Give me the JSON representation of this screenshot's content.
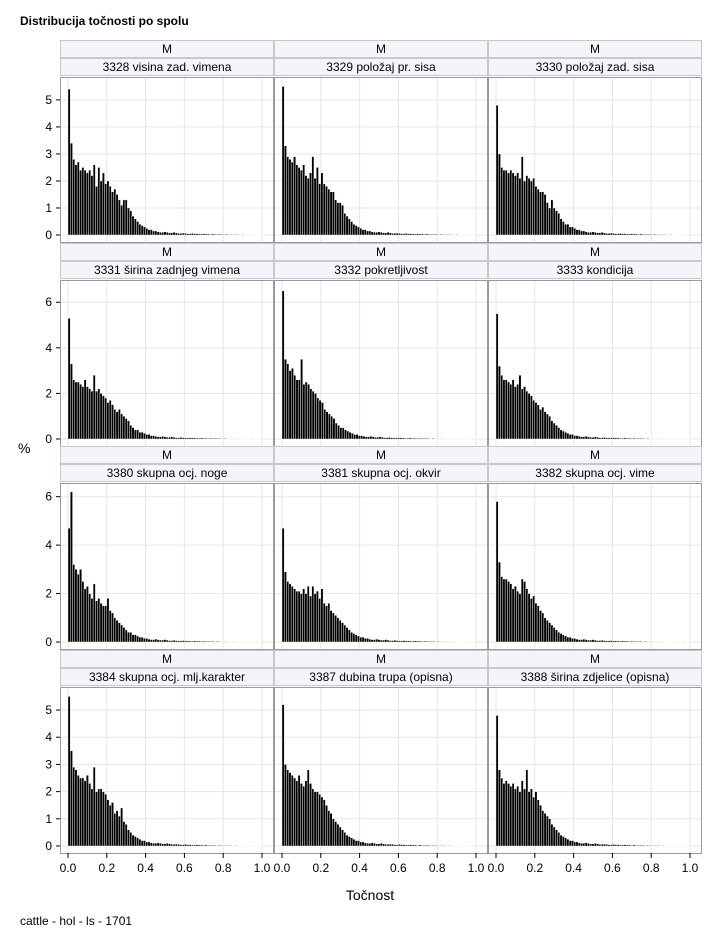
{
  "title": "Distribucija točnosti po spolu",
  "footer": "cattle - hol - ls - 1701",
  "chart_data": {
    "type": "bar",
    "title": "Distribucija točnosti po spolu",
    "xlabel": "Točnost",
    "ylabel": "%",
    "xlim": [
      0,
      1
    ],
    "x_ticks": [
      "0.0",
      "0.2",
      "0.4",
      "0.6",
      "0.8",
      "1.0"
    ],
    "grid": true,
    "panels": [
      {
        "sex": "M",
        "trait": "3328 visina zad. vimena",
        "ylim": [
          0,
          5.7
        ],
        "y_ticks": [
          0,
          1,
          2,
          3,
          4,
          5
        ],
        "values": [
          5.4,
          3.4,
          2.8,
          2.6,
          2.7,
          2.4,
          2.5,
          2.4,
          2.3,
          2.4,
          2.2,
          2.6,
          1.8,
          2.5,
          2.0,
          2.3,
          1.9,
          2.0,
          1.8,
          1.6,
          1.7,
          1.5,
          1.3,
          1.1,
          1.3,
          1.3,
          1.0,
          0.9,
          0.7,
          0.6,
          0.5,
          0.4,
          0.35,
          0.3,
          0.25,
          0.2,
          0.2,
          0.15,
          0.15,
          0.12,
          0.1,
          0.1,
          0.12,
          0.1,
          0.08,
          0.08,
          0.1,
          0.08,
          0.06,
          0.06,
          0.07,
          0.06,
          0.05,
          0.05,
          0.06,
          0.05,
          0.05,
          0.04,
          0.04,
          0.05,
          0.04,
          0.04,
          0.03,
          0.04,
          0.03,
          0.03,
          0.03,
          0.03,
          0.02,
          0.03,
          0.02,
          0.02,
          0.02,
          0.02,
          0.02,
          0.01,
          0.02,
          0.01,
          0.01,
          0.01,
          0.01,
          0,
          0.01,
          0.01,
          0.01
        ]
      },
      {
        "sex": "M",
        "trait": "3329 položaj pr. sisa",
        "ylim": [
          0,
          5.7
        ],
        "y_ticks": [
          0,
          1,
          2,
          3,
          4,
          5
        ],
        "values": [
          5.5,
          3.3,
          2.9,
          2.8,
          2.7,
          2.9,
          2.6,
          2.5,
          2.4,
          2.6,
          2.2,
          2.1,
          2.3,
          2.9,
          2.1,
          2.5,
          1.9,
          2.3,
          1.9,
          1.8,
          1.7,
          1.6,
          1.6,
          1.3,
          1.2,
          1.2,
          1.1,
          0.8,
          0.7,
          0.6,
          0.5,
          0.4,
          0.35,
          0.3,
          0.25,
          0.2,
          0.2,
          0.15,
          0.15,
          0.12,
          0.1,
          0.1,
          0.12,
          0.1,
          0.08,
          0.08,
          0.1,
          0.08,
          0.06,
          0.06,
          0.07,
          0.06,
          0.05,
          0.05,
          0.06,
          0.05,
          0.05,
          0.04,
          0.04,
          0.05,
          0.04,
          0.04,
          0.03,
          0.04,
          0.03,
          0.03,
          0.03,
          0.03,
          0.02,
          0.03,
          0.02,
          0.02,
          0.02,
          0.02,
          0.02,
          0.01,
          0.02,
          0.01,
          0.01,
          0.01,
          0.01,
          0,
          0.01,
          0.01,
          0.01
        ]
      },
      {
        "sex": "M",
        "trait": "3330 položaj zad. sisa",
        "ylim": [
          0,
          5.7
        ],
        "y_ticks": [
          0,
          1,
          2,
          3,
          4,
          5
        ],
        "values": [
          4.8,
          3.0,
          2.5,
          2.4,
          2.4,
          2.3,
          2.4,
          2.3,
          2.2,
          2.3,
          2.1,
          2.9,
          2.0,
          2.2,
          2.1,
          2.0,
          2.1,
          1.8,
          1.7,
          1.6,
          1.6,
          1.5,
          1.2,
          1.0,
          1.3,
          1.0,
          0.9,
          0.8,
          0.6,
          0.5,
          0.4,
          0.4,
          0.3,
          0.3,
          0.25,
          0.2,
          0.2,
          0.15,
          0.15,
          0.12,
          0.1,
          0.1,
          0.12,
          0.1,
          0.08,
          0.08,
          0.1,
          0.08,
          0.06,
          0.06,
          0.07,
          0.06,
          0.05,
          0.05,
          0.06,
          0.05,
          0.05,
          0.04,
          0.04,
          0.05,
          0.04,
          0.04,
          0.03,
          0.04,
          0.03,
          0.03,
          0.03,
          0.03,
          0.02,
          0.03,
          0.02,
          0.02,
          0.02,
          0.02,
          0.02,
          0.01,
          0.02,
          0.01,
          0.01,
          0.01,
          0.01,
          0,
          0.01,
          0.01,
          0.01
        ]
      },
      {
        "sex": "M",
        "trait": "3331 širina zadnjeg vimena",
        "ylim": [
          0,
          6.8
        ],
        "y_ticks": [
          0,
          2,
          4,
          6
        ],
        "values": [
          5.3,
          3.3,
          2.6,
          2.5,
          2.5,
          2.4,
          2.3,
          2.6,
          2.3,
          2.2,
          2.1,
          2.8,
          2.1,
          2.2,
          2.0,
          1.9,
          1.8,
          1.6,
          1.7,
          1.5,
          1.3,
          1.2,
          1.3,
          1.1,
          1.0,
          0.9,
          0.8,
          0.6,
          0.5,
          0.4,
          0.4,
          0.3,
          0.3,
          0.25,
          0.2,
          0.2,
          0.15,
          0.15,
          0.12,
          0.1,
          0.1,
          0.12,
          0.1,
          0.08,
          0.08,
          0.1,
          0.08,
          0.06,
          0.06,
          0.07,
          0.06,
          0.05,
          0.05,
          0.06,
          0.05,
          0.05,
          0.04,
          0.04,
          0.05,
          0.04,
          0.04,
          0.03,
          0.04,
          0.03,
          0.03,
          0.03,
          0.03,
          0.02,
          0.03,
          0.02,
          0.02,
          0.02,
          0.02,
          0.02,
          0.01,
          0.02,
          0.01,
          0.01,
          0.01,
          0.01,
          0,
          0.01,
          0.01,
          0.01,
          0.01
        ]
      },
      {
        "sex": "M",
        "trait": "3332 pokretljivost",
        "ylim": [
          0,
          6.8
        ],
        "y_ticks": [
          0,
          2,
          4,
          6
        ],
        "values": [
          6.5,
          3.5,
          3.3,
          3.0,
          3.1,
          2.8,
          2.6,
          2.6,
          3.5,
          2.4,
          2.5,
          2.4,
          2.2,
          2.1,
          2.0,
          1.8,
          1.7,
          1.6,
          1.3,
          1.2,
          1.1,
          1.0,
          0.9,
          0.7,
          0.6,
          0.5,
          0.5,
          0.4,
          0.35,
          0.3,
          0.25,
          0.2,
          0.2,
          0.15,
          0.15,
          0.12,
          0.1,
          0.1,
          0.12,
          0.1,
          0.08,
          0.08,
          0.1,
          0.08,
          0.06,
          0.06,
          0.07,
          0.06,
          0.05,
          0.05,
          0.06,
          0.05,
          0.05,
          0.04,
          0.04,
          0.05,
          0.04,
          0.04,
          0.03,
          0.04,
          0.03,
          0.03,
          0.03,
          0.03,
          0.02,
          0.03,
          0.02,
          0.02,
          0.02,
          0.02,
          0.02,
          0.01,
          0.02,
          0.01,
          0.01,
          0.01,
          0.01,
          0,
          0.01,
          0.01,
          0.01,
          0.01,
          0,
          0.01
        ]
      },
      {
        "sex": "M",
        "trait": "3333 kondicija",
        "ylim": [
          0,
          6.8
        ],
        "y_ticks": [
          0,
          2,
          4,
          6
        ],
        "values": [
          5.5,
          3.2,
          2.8,
          2.6,
          2.6,
          2.5,
          2.4,
          2.6,
          2.3,
          2.4,
          2.8,
          2.2,
          2.3,
          2.1,
          2.0,
          1.9,
          1.7,
          1.6,
          1.5,
          1.3,
          1.4,
          1.2,
          1.1,
          1.0,
          0.8,
          0.7,
          0.6,
          0.5,
          0.4,
          0.35,
          0.3,
          0.25,
          0.2,
          0.2,
          0.15,
          0.15,
          0.12,
          0.1,
          0.1,
          0.12,
          0.1,
          0.08,
          0.08,
          0.1,
          0.08,
          0.06,
          0.06,
          0.07,
          0.06,
          0.05,
          0.05,
          0.06,
          0.05,
          0.05,
          0.04,
          0.04,
          0.05,
          0.04,
          0.04,
          0.03,
          0.04,
          0.03,
          0.03,
          0.03,
          0.03,
          0.02,
          0.03,
          0.02,
          0.02,
          0.02,
          0.02,
          0.02,
          0.01,
          0.02,
          0.01,
          0.01,
          0.01,
          0.01,
          0,
          0.01,
          0.01,
          0.01,
          0.01,
          0,
          0.01
        ]
      },
      {
        "sex": "M",
        "trait": "3380 skupna ocj. noge",
        "ylim": [
          0,
          6.4
        ],
        "y_ticks": [
          0,
          2,
          4,
          6
        ],
        "values": [
          4.7,
          6.2,
          3.2,
          3.0,
          2.8,
          3.0,
          2.5,
          2.2,
          2.3,
          2.0,
          1.8,
          2.4,
          1.7,
          1.8,
          1.6,
          1.5,
          1.5,
          1.8,
          1.3,
          1.2,
          1.0,
          0.9,
          0.8,
          0.7,
          0.6,
          0.5,
          0.4,
          0.4,
          0.3,
          0.3,
          0.25,
          0.2,
          0.2,
          0.15,
          0.15,
          0.12,
          0.1,
          0.1,
          0.12,
          0.1,
          0.08,
          0.08,
          0.1,
          0.08,
          0.06,
          0.06,
          0.07,
          0.06,
          0.05,
          0.05,
          0.06,
          0.05,
          0.05,
          0.04,
          0.04,
          0.05,
          0.04,
          0.04,
          0.03,
          0.04,
          0.03,
          0.03,
          0.03,
          0.03,
          0.02,
          0.03,
          0.02,
          0.02,
          0.02,
          0.02,
          0.02,
          0.01,
          0.02,
          0.01,
          0.01,
          0.01,
          0.01,
          0,
          0.01,
          0.01,
          0.01,
          0.01,
          0,
          0.01,
          0.01
        ]
      },
      {
        "sex": "M",
        "trait": "3381 skupna ocj. okvir",
        "ylim": [
          0,
          6.4
        ],
        "y_ticks": [
          0,
          2,
          4,
          6
        ],
        "values": [
          4.7,
          2.9,
          2.5,
          2.4,
          2.3,
          2.2,
          2.1,
          2.1,
          2.0,
          2.2,
          2.0,
          2.3,
          1.9,
          2.3,
          2.0,
          2.1,
          1.8,
          2.2,
          1.6,
          1.5,
          1.6,
          1.3,
          1.2,
          1.1,
          1.0,
          0.9,
          0.8,
          0.7,
          0.6,
          0.5,
          0.4,
          0.35,
          0.3,
          0.25,
          0.2,
          0.2,
          0.15,
          0.15,
          0.12,
          0.1,
          0.1,
          0.12,
          0.1,
          0.08,
          0.08,
          0.1,
          0.08,
          0.06,
          0.06,
          0.07,
          0.06,
          0.05,
          0.05,
          0.06,
          0.05,
          0.05,
          0.04,
          0.04,
          0.05,
          0.04,
          0.04,
          0.03,
          0.04,
          0.03,
          0.03,
          0.03,
          0.03,
          0.02,
          0.03,
          0.02,
          0.02,
          0.02,
          0.02,
          0.02,
          0.01,
          0.02,
          0.01,
          0.01,
          0.01,
          0.01,
          0,
          0.01,
          0.01,
          0.01,
          0.01
        ]
      },
      {
        "sex": "M",
        "trait": "3382 skupna ocj. vime",
        "ylim": [
          0,
          6.4
        ],
        "y_ticks": [
          0,
          2,
          4,
          6
        ],
        "values": [
          5.8,
          3.3,
          2.7,
          2.6,
          2.6,
          2.5,
          2.4,
          2.2,
          2.3,
          2.1,
          2.0,
          2.6,
          2.5,
          2.2,
          2.0,
          1.8,
          1.9,
          1.6,
          1.5,
          1.3,
          1.2,
          1.0,
          0.9,
          0.8,
          0.7,
          0.6,
          0.5,
          0.4,
          0.35,
          0.3,
          0.25,
          0.2,
          0.2,
          0.15,
          0.15,
          0.12,
          0.1,
          0.1,
          0.12,
          0.1,
          0.08,
          0.08,
          0.1,
          0.08,
          0.06,
          0.06,
          0.07,
          0.06,
          0.05,
          0.05,
          0.06,
          0.05,
          0.05,
          0.04,
          0.04,
          0.05,
          0.04,
          0.04,
          0.03,
          0.04,
          0.03,
          0.03,
          0.03,
          0.03,
          0.02,
          0.03,
          0.02,
          0.02,
          0.02,
          0.02,
          0.02,
          0.01,
          0.02,
          0.01,
          0.01,
          0.01,
          0.01,
          0,
          0.01,
          0.01,
          0.01,
          0.01,
          0,
          0.01,
          0.01
        ]
      },
      {
        "sex": "M",
        "trait": "3384 skupna ocj. mlj.karakter",
        "ylim": [
          0,
          5.7
        ],
        "y_ticks": [
          0,
          1,
          2,
          3,
          4,
          5
        ],
        "values": [
          5.5,
          3.5,
          2.9,
          2.8,
          2.6,
          2.5,
          2.5,
          2.4,
          2.6,
          2.3,
          2.1,
          2.9,
          2.0,
          2.1,
          2.1,
          2.0,
          1.9,
          1.7,
          1.5,
          1.6,
          1.2,
          1.3,
          1.1,
          1.4,
          0.9,
          0.8,
          0.6,
          0.5,
          0.4,
          0.35,
          0.3,
          0.25,
          0.2,
          0.2,
          0.15,
          0.15,
          0.12,
          0.1,
          0.1,
          0.12,
          0.1,
          0.08,
          0.08,
          0.1,
          0.08,
          0.06,
          0.06,
          0.07,
          0.06,
          0.05,
          0.05,
          0.06,
          0.05,
          0.05,
          0.04,
          0.04,
          0.05,
          0.04,
          0.04,
          0.03,
          0.04,
          0.03,
          0.03,
          0.03,
          0.03,
          0.02,
          0.03,
          0.02,
          0.02,
          0.02,
          0.02,
          0.02,
          0.01,
          0.02,
          0.01,
          0.01,
          0.01,
          0.01,
          0,
          0.01,
          0.01,
          0.01,
          0.01,
          0,
          0.01
        ]
      },
      {
        "sex": "M",
        "trait": "3387 dubina trupa (opisna)",
        "ylim": [
          0,
          5.7
        ],
        "y_ticks": [
          0,
          1,
          2,
          3,
          4,
          5
        ],
        "values": [
          5.2,
          3.0,
          2.8,
          2.7,
          2.6,
          2.5,
          2.4,
          2.6,
          2.3,
          2.2,
          2.4,
          2.8,
          2.3,
          2.1,
          2.0,
          2.0,
          1.9,
          1.8,
          1.7,
          1.5,
          1.3,
          1.2,
          1.0,
          0.9,
          0.8,
          0.7,
          0.6,
          0.5,
          0.4,
          0.35,
          0.3,
          0.25,
          0.2,
          0.2,
          0.15,
          0.15,
          0.12,
          0.1,
          0.1,
          0.12,
          0.1,
          0.08,
          0.08,
          0.1,
          0.08,
          0.06,
          0.06,
          0.07,
          0.06,
          0.05,
          0.05,
          0.06,
          0.05,
          0.05,
          0.04,
          0.04,
          0.05,
          0.04,
          0.04,
          0.03,
          0.04,
          0.03,
          0.03,
          0.03,
          0.03,
          0.02,
          0.03,
          0.02,
          0.02,
          0.02,
          0.02,
          0.02,
          0.01,
          0.02,
          0.01,
          0.01,
          0.01,
          0.01,
          0,
          0.01,
          0.01,
          0.01,
          0.01,
          0,
          0.01
        ]
      },
      {
        "sex": "M",
        "trait": "3388 širina zdjelice (opisna)",
        "ylim": [
          0,
          5.7
        ],
        "y_ticks": [
          0,
          1,
          2,
          3,
          4,
          5
        ],
        "values": [
          4.8,
          2.8,
          2.5,
          2.3,
          2.4,
          2.3,
          2.2,
          2.3,
          2.1,
          2.2,
          2.0,
          2.4,
          2.1,
          2.8,
          2.0,
          2.1,
          1.8,
          2.0,
          1.7,
          1.5,
          1.3,
          1.2,
          1.1,
          1.0,
          0.8,
          0.7,
          0.6,
          0.5,
          0.4,
          0.35,
          0.3,
          0.25,
          0.2,
          0.2,
          0.15,
          0.15,
          0.12,
          0.1,
          0.1,
          0.12,
          0.1,
          0.08,
          0.08,
          0.1,
          0.08,
          0.06,
          0.06,
          0.07,
          0.06,
          0.05,
          0.05,
          0.06,
          0.05,
          0.05,
          0.04,
          0.04,
          0.05,
          0.04,
          0.04,
          0.03,
          0.04,
          0.03,
          0.03,
          0.03,
          0.03,
          0.02,
          0.03,
          0.02,
          0.02,
          0.02,
          0.02,
          0.02,
          0.01,
          0.02,
          0.01,
          0.01,
          0.01,
          0.01,
          0,
          0.01,
          0.01,
          0.01,
          0.01,
          0,
          0.01
        ]
      }
    ]
  }
}
